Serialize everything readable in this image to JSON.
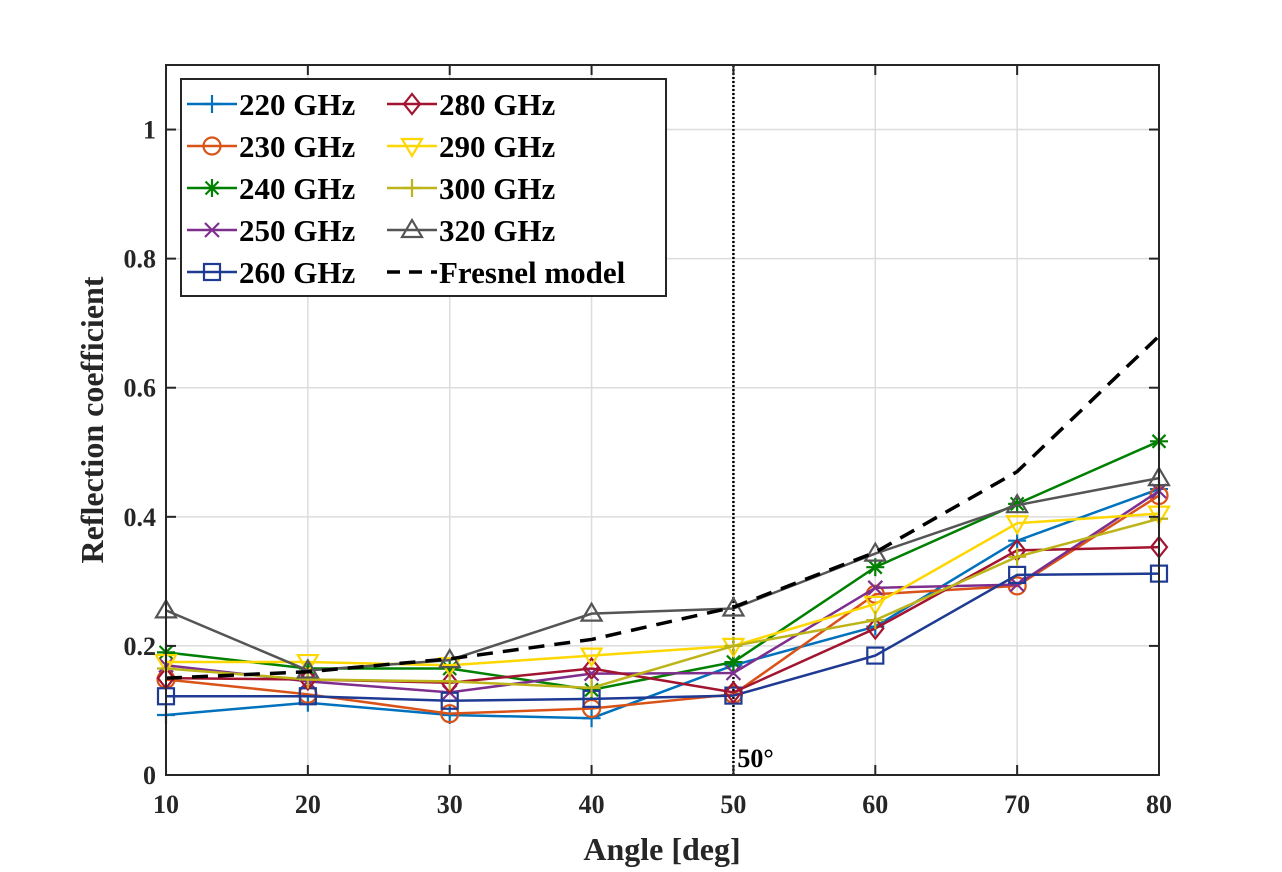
{
  "chart_data": {
    "type": "line",
    "title": "",
    "xlabel": "Angle [deg]",
    "ylabel": "Reflection coefficient",
    "xlim": [
      10,
      80
    ],
    "ylim": [
      0,
      1.1
    ],
    "xticks": [
      10,
      20,
      30,
      40,
      50,
      60,
      70,
      80
    ],
    "xtick_labels": [
      "10",
      "20",
      "30",
      "40",
      "50",
      "60",
      "70",
      "80"
    ],
    "yticks": [
      0,
      0.2,
      0.4,
      0.6,
      0.8,
      1
    ],
    "ytick_labels": [
      "0",
      "0.2",
      "0.4",
      "0.6",
      "0.8",
      "1"
    ],
    "grid": true,
    "legend_position": "top-left",
    "x": [
      10,
      20,
      30,
      40,
      50,
      60,
      70,
      80
    ],
    "series": [
      {
        "name": "220 GHz",
        "color": "#0072BD",
        "marker": "plus",
        "values": [
          0.093,
          0.112,
          0.093,
          0.088,
          0.17,
          0.23,
          0.363,
          0.443
        ]
      },
      {
        "name": "230 GHz",
        "color": "#D95319",
        "marker": "circle",
        "values": [
          0.148,
          0.125,
          0.095,
          0.103,
          0.125,
          0.28,
          0.293,
          0.433
        ]
      },
      {
        "name": "240 GHz",
        "color": "#008000",
        "marker": "asterisk",
        "values": [
          0.19,
          0.165,
          0.165,
          0.132,
          0.175,
          0.322,
          0.42,
          0.517
        ]
      },
      {
        "name": "250 GHz",
        "color": "#7E2F8E",
        "marker": "x",
        "values": [
          0.17,
          0.145,
          0.128,
          0.157,
          0.158,
          0.29,
          0.295,
          0.44
        ]
      },
      {
        "name": "260 GHz",
        "color": "#1F3A93",
        "marker": "square",
        "values": [
          0.122,
          0.122,
          0.115,
          0.118,
          0.123,
          0.185,
          0.31,
          0.312
        ]
      },
      {
        "name": "280 GHz",
        "color": "#A2142F",
        "marker": "diamond",
        "values": [
          0.15,
          0.148,
          0.143,
          0.165,
          0.128,
          0.227,
          0.348,
          0.353
        ]
      },
      {
        "name": "290 GHz",
        "color": "#FFD700",
        "marker": "triangle-down",
        "values": [
          0.175,
          0.175,
          0.17,
          0.185,
          0.2,
          0.265,
          0.39,
          0.405
        ]
      },
      {
        "name": "300 GHz",
        "color": "#BDB41A",
        "marker": "plus",
        "values": [
          0.165,
          0.148,
          0.145,
          0.135,
          0.2,
          0.24,
          0.338,
          0.397
        ]
      },
      {
        "name": "320 GHz",
        "color": "#555555",
        "marker": "triangle-up",
        "values": [
          0.255,
          0.162,
          0.178,
          0.25,
          0.258,
          0.343,
          0.418,
          0.46
        ]
      },
      {
        "name": "Fresnel model",
        "color": "#000000",
        "marker": "none",
        "dashed": true,
        "values": [
          0.15,
          0.16,
          0.18,
          0.21,
          0.26,
          0.345,
          0.47,
          0.68
        ]
      }
    ],
    "annotations": [
      {
        "x": 50,
        "label": "50°",
        "style": "vertical-dotted-line"
      }
    ]
  }
}
